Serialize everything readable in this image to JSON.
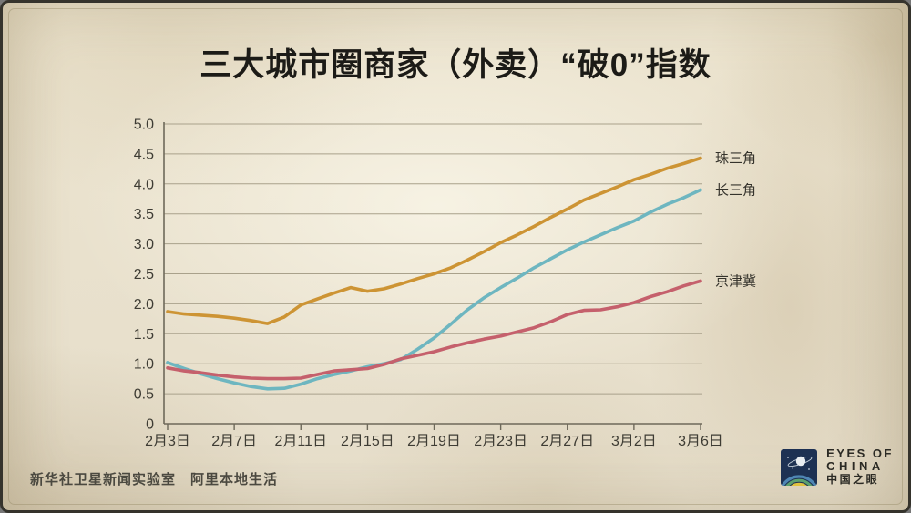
{
  "title": "三大城市圈商家（外卖）“破0”指数",
  "footer": {
    "credit": "新华社卫星新闻实验室　阿里本地生活"
  },
  "logo": {
    "line1": "EYES OF",
    "line2": "CHINA",
    "line3": "中国之眼"
  },
  "colors": {
    "background": "#ece4cf",
    "grid": "#a9a18b",
    "axis": "#6e695a",
    "tick_text": "#3e3c34",
    "series_label_text": "#35332c",
    "title_text": "#1c1b17",
    "logo_navy": "#1d3153",
    "logo_arc_blue": "#4f86b4",
    "logo_arc_green": "#5ba06e",
    "logo_arc_yellow": "#dfc23f"
  },
  "chart_data": {
    "type": "line",
    "title": "三大城市圈商家（外卖）“破0”指数",
    "xlabel": "",
    "ylabel": "",
    "ylim": [
      0,
      5
    ],
    "grid": true,
    "legend_position": "labels-at-line-ends-right",
    "n_points": 33,
    "x_tick_labels": [
      "2月3日",
      "2月7日",
      "2月11日",
      "2月15日",
      "2月19日",
      "2月23日",
      "2月27日",
      "3月2日",
      "3月6日"
    ],
    "x_tick_indices": [
      0,
      4,
      8,
      12,
      16,
      20,
      24,
      28,
      32
    ],
    "y_tick_values": [
      0,
      0.5,
      1,
      1.5,
      2,
      2.5,
      3,
      3.5,
      4,
      4.5,
      5
    ],
    "y_tick_labels": [
      "0",
      "0.5",
      "1.0",
      "1.5",
      "2.0",
      "2.5",
      "3.0",
      "3.5",
      "4.0",
      "4.5",
      "5.0"
    ],
    "series": [
      {
        "name": "珠三角",
        "color": "#cd9434",
        "values": [
          1.87,
          1.83,
          1.81,
          1.79,
          1.76,
          1.72,
          1.67,
          1.78,
          1.98,
          2.08,
          2.18,
          2.27,
          2.21,
          2.25,
          2.33,
          2.42,
          2.5,
          2.6,
          2.73,
          2.87,
          3.02,
          3.15,
          3.29,
          3.44,
          3.58,
          3.73,
          3.84,
          3.95,
          4.07,
          4.16,
          4.26,
          4.34,
          4.43
        ]
      },
      {
        "name": "长三角",
        "color": "#6eb6c0",
        "values": [
          1.02,
          0.92,
          0.83,
          0.75,
          0.68,
          0.62,
          0.58,
          0.59,
          0.66,
          0.75,
          0.82,
          0.88,
          0.95,
          1.0,
          1.07,
          1.24,
          1.43,
          1.66,
          1.9,
          2.1,
          2.27,
          2.43,
          2.6,
          2.75,
          2.9,
          3.03,
          3.15,
          3.27,
          3.38,
          3.53,
          3.66,
          3.77,
          3.9
        ]
      },
      {
        "name": "京津冀",
        "color": "#c5606c",
        "values": [
          0.93,
          0.88,
          0.85,
          0.81,
          0.78,
          0.76,
          0.75,
          0.75,
          0.76,
          0.82,
          0.88,
          0.9,
          0.92,
          0.99,
          1.08,
          1.14,
          1.2,
          1.28,
          1.35,
          1.41,
          1.46,
          1.53,
          1.6,
          1.7,
          1.82,
          1.89,
          1.9,
          1.95,
          2.02,
          2.12,
          2.2,
          2.3,
          2.38
        ]
      }
    ]
  }
}
